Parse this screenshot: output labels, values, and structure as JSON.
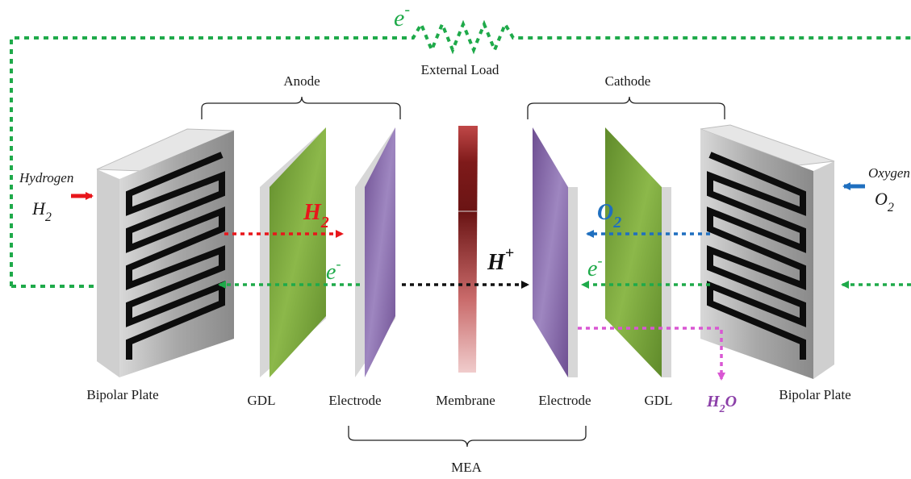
{
  "labels": {
    "external_load": "External Load",
    "anode": "Anode",
    "cathode": "Cathode",
    "mea": "MEA",
    "bipolar_plate_left": "Bipolar Plate",
    "bipolar_plate_right": "Bipolar Plate",
    "gdl_left": "GDL",
    "gdl_right": "GDL",
    "electrode_left": "Electrode",
    "electrode_right": "Electrode",
    "membrane": "Membrane"
  },
  "species": {
    "hydrogen_word": "Hydrogen",
    "oxygen_word": "Oxygen",
    "h2_base": "H",
    "h2_sub": "2",
    "o2_base": "O",
    "o2_sub": "2",
    "proton_base": "H",
    "proton_sup": "+",
    "electron_base": "e",
    "electron_sup": "-",
    "water_h": "H",
    "water_sub": "2",
    "water_o": "O"
  },
  "colors": {
    "electron_flow": "#1faa4a",
    "hydrogen_flow": "#e8161b",
    "oxygen_flow": "#1f6fbf",
    "proton_flow": "#111111",
    "water_flow": "#d957d3",
    "gdl_green": "#79a33a",
    "electrode_purple": "#8a6aaa",
    "membrane_red": "#8b1f1f",
    "plate_gray": "#9a9a9a"
  }
}
